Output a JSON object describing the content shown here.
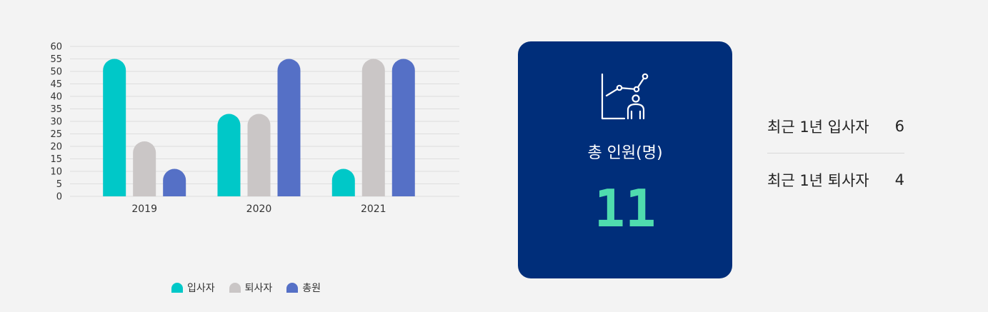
{
  "chart_data": {
    "type": "bar",
    "categories": [
      "2019",
      "2020",
      "2021"
    ],
    "series": [
      {
        "name": "입사자",
        "values": [
          55,
          33,
          11
        ],
        "color": "#00c8c8"
      },
      {
        "name": "퇴사자",
        "values": [
          22,
          33,
          55
        ],
        "color": "#cac6c6"
      },
      {
        "name": "총원",
        "values": [
          11,
          55,
          55
        ],
        "color": "#5570c6"
      }
    ],
    "yticks": [
      "0",
      "5",
      "10",
      "15",
      "20",
      "25",
      "30",
      "35",
      "40",
      "45",
      "50",
      "55",
      "60"
    ],
    "ylim": [
      0,
      60
    ],
    "grid": true,
    "legend": "bottom"
  },
  "card": {
    "icon": "chart-person-icon",
    "title": "총 인원(명)",
    "value": "11",
    "background": "#002e7a",
    "value_color": "#4fdcae"
  },
  "stats": [
    {
      "label": "최근 1년 입사자",
      "value": "6"
    },
    {
      "label": "최근 1년 퇴사자",
      "value": "4"
    }
  ]
}
